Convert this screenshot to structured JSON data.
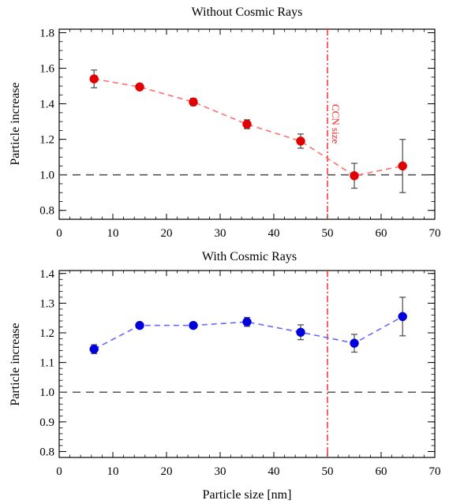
{
  "chart_data": [
    {
      "type": "scatter",
      "title": "Without Cosmic Rays",
      "xlabel": "",
      "ylabel": "Particle increase",
      "xlim": [
        0,
        70
      ],
      "ylim": [
        0.75,
        1.82
      ],
      "xticks": [
        0,
        10,
        20,
        30,
        40,
        50,
        60,
        70
      ],
      "yticks": [
        0.8,
        1.0,
        1.2,
        1.4,
        1.6,
        1.8
      ],
      "ytick_labels": [
        "0.8",
        "1.0",
        "1.2",
        "1.4",
        "1.6",
        "1.8"
      ],
      "xtick_labels": [
        "0",
        "10",
        "20",
        "30",
        "40",
        "50",
        "60",
        "70"
      ],
      "reference_line": {
        "y": 1.0,
        "style": "dashed",
        "color": "#555555"
      },
      "vline": {
        "x": 50,
        "label": "CCN size",
        "color": "#ff2020",
        "style": "dash-dot"
      },
      "grid": false,
      "series": [
        {
          "color": "#e00000",
          "line_color": "#ff7070",
          "x": [
            6.5,
            15,
            25,
            35,
            45,
            55,
            64
          ],
          "y": [
            1.54,
            1.495,
            1.41,
            1.285,
            1.19,
            0.995,
            1.05
          ],
          "err": [
            0.05,
            0.01,
            0.02,
            0.025,
            0.04,
            0.07,
            0.15
          ]
        }
      ]
    },
    {
      "type": "scatter",
      "title": "With Cosmic Rays",
      "xlabel": "Particle size [nm]",
      "ylabel": "Particle increase",
      "xlim": [
        0,
        70
      ],
      "ylim": [
        0.78,
        1.41
      ],
      "xticks": [
        0,
        10,
        20,
        30,
        40,
        50,
        60,
        70
      ],
      "yticks": [
        0.8,
        0.9,
        1.0,
        1.1,
        1.2,
        1.3,
        1.4
      ],
      "ytick_labels": [
        "0.8",
        "0.9",
        "1.0",
        "1.1",
        "1.2",
        "1.3",
        "1.4"
      ],
      "xtick_labels": [
        "0",
        "10",
        "20",
        "30",
        "40",
        "50",
        "60",
        "70"
      ],
      "reference_line": {
        "y": 1.0,
        "style": "dashed",
        "color": "#555555"
      },
      "vline": {
        "x": 50,
        "color": "#ff2020",
        "style": "dash-dot"
      },
      "grid": false,
      "series": [
        {
          "color": "#0000dd",
          "line_color": "#6666ff",
          "x": [
            6.5,
            15,
            25,
            35,
            45,
            55,
            64
          ],
          "y": [
            1.145,
            1.225,
            1.225,
            1.237,
            1.202,
            1.165,
            1.255
          ],
          "err": [
            0.015,
            0.005,
            0.01,
            0.015,
            0.025,
            0.03,
            0.065
          ]
        }
      ]
    }
  ]
}
